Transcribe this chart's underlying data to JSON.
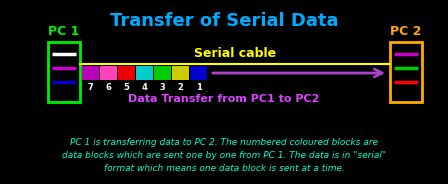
{
  "title": "Transfer of Serial Data",
  "title_color": "#00aaff",
  "bg_color": "#000000",
  "pc1_label": "PC 1",
  "pc2_label": "PC 2",
  "pc1_color": "#00ee00",
  "pc2_color": "#ffaa00",
  "cable_label": "Serial cable",
  "cable_color": "#ffff00",
  "arrow_color": "#aa44cc",
  "data_transfer_label": "Data Transfer from PC1 to PC2",
  "data_transfer_color": "#dd44ff",
  "blocks": [
    {
      "num": "7",
      "color": "#bb00bb"
    },
    {
      "num": "6",
      "color": "#ff44bb"
    },
    {
      "num": "5",
      "color": "#ee0000"
    },
    {
      "num": "4",
      "color": "#00cccc"
    },
    {
      "num": "3",
      "color": "#00cc00"
    },
    {
      "num": "2",
      "color": "#cccc00"
    },
    {
      "num": "1",
      "color": "#0000cc"
    }
  ],
  "pc1_lines": [
    {
      "color": "#ffffff"
    },
    {
      "color": "#cc00cc"
    },
    {
      "color": "#0000cc"
    }
  ],
  "pc2_lines": [
    {
      "color": "#cc00cc"
    },
    {
      "color": "#00cc00"
    },
    {
      "color": "#ff0000"
    }
  ],
  "footer_color": "#00ffcc",
  "footer_highlight": "#ffff00",
  "footer_line1_parts": [
    {
      "text": "PC 1",
      "bold": true
    },
    {
      "text": " is transferring data to ",
      "bold": false
    },
    {
      "text": "PC 2",
      "bold": true
    },
    {
      "text": ". The numbered coloured blocks are",
      "bold": false
    }
  ],
  "footer_line2": "data blocks which are sent one by one from PC 1. The data is in \"serial\"",
  "footer_line3": "format which means one data block is sent at a time."
}
